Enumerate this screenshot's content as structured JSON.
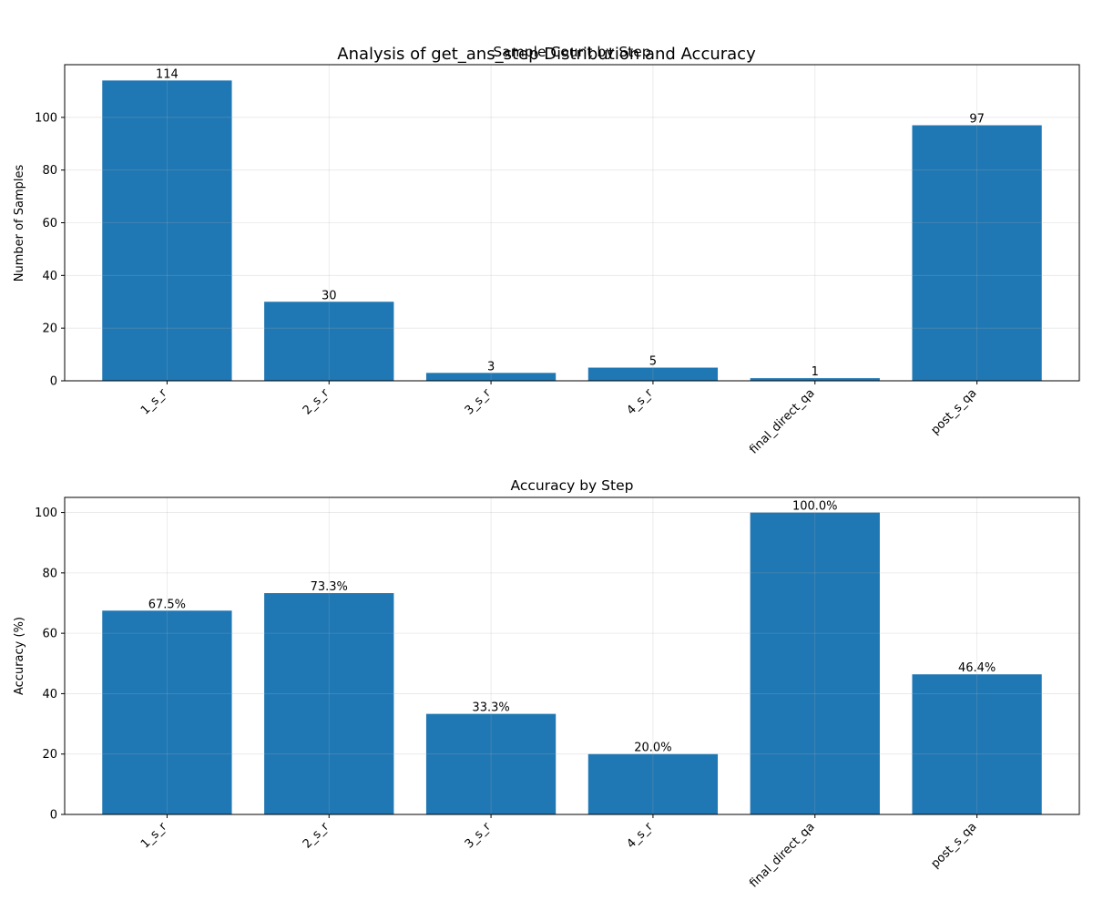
{
  "figure": {
    "suptitle": "Analysis of get_ans_step Distribution and Accuracy"
  },
  "chart_data": [
    {
      "type": "bar",
      "title": "Sample Count by Step",
      "xlabel": "",
      "ylabel": "Number of Samples",
      "categories": [
        "1_s_r",
        "2_s_r",
        "3_s_r",
        "4_s_r",
        "final_direct_qa",
        "post_s_qa"
      ],
      "values": [
        114,
        30,
        3,
        5,
        1,
        97
      ],
      "value_labels": [
        "114",
        "30",
        "3",
        "5",
        "1",
        "97"
      ],
      "ylim": [
        0,
        120
      ],
      "yticks": [
        0,
        20,
        40,
        60,
        80,
        100
      ],
      "grid": true,
      "bar_color": "#1f77b4",
      "tick_label_rotation": 45
    },
    {
      "type": "bar",
      "title": "Accuracy by Step",
      "xlabel": "",
      "ylabel": "Accuracy (%)",
      "categories": [
        "1_s_r",
        "2_s_r",
        "3_s_r",
        "4_s_r",
        "final_direct_qa",
        "post_s_qa"
      ],
      "values": [
        67.5,
        73.3,
        33.3,
        20.0,
        100.0,
        46.4
      ],
      "value_labels": [
        "67.5%",
        "73.3%",
        "33.3%",
        "20.0%",
        "100.0%",
        "46.4%"
      ],
      "ylim": [
        0,
        105
      ],
      "yticks": [
        0,
        20,
        40,
        60,
        80,
        100
      ],
      "grid": true,
      "bar_color": "#1f77b4",
      "tick_label_rotation": 45
    }
  ]
}
